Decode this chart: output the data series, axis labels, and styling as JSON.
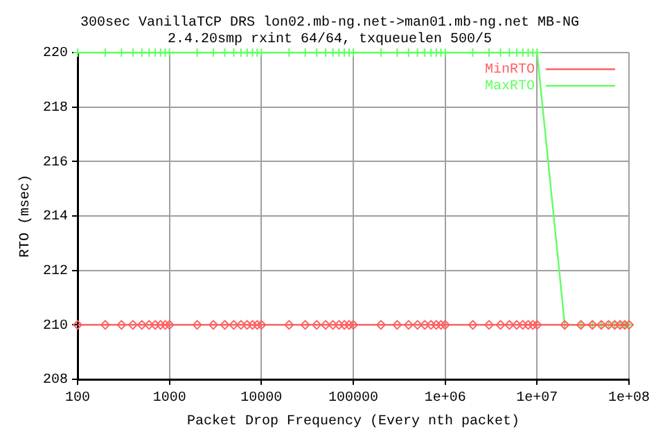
{
  "chart_data": {
    "type": "line",
    "title": "300sec VanillaTCP DRS lon02.mb-ng.net->man01.mb-ng.net MB-NG",
    "subtitle": "2.4.20smp rxint 64/64, txqueuelen 500/5",
    "xlabel": "Packet Drop Frequency (Every nth packet)",
    "ylabel": "RTO (msec)",
    "x": [
      100,
      200,
      300,
      400,
      500,
      600,
      700,
      800,
      900,
      1000,
      2000,
      3000,
      4000,
      5000,
      6000,
      7000,
      8000,
      9000,
      10000,
      20000,
      30000,
      40000,
      50000,
      60000,
      70000,
      80000,
      90000,
      100000,
      200000,
      300000,
      400000,
      500000,
      600000,
      700000,
      800000,
      900000,
      1000000,
      2000000,
      3000000,
      4000000,
      5000000,
      6000000,
      7000000,
      8000000,
      9000000,
      10000000,
      20000000,
      30000000,
      40000000,
      50000000,
      60000000,
      70000000,
      80000000,
      90000000,
      100000000
    ],
    "series": [
      {
        "name": "MinRTO",
        "color": "#ff6060",
        "marker": "diamond",
        "values": [
          210,
          210,
          210,
          210,
          210,
          210,
          210,
          210,
          210,
          210,
          210,
          210,
          210,
          210,
          210,
          210,
          210,
          210,
          210,
          210,
          210,
          210,
          210,
          210,
          210,
          210,
          210,
          210,
          210,
          210,
          210,
          210,
          210,
          210,
          210,
          210,
          210,
          210,
          210,
          210,
          210,
          210,
          210,
          210,
          210,
          210,
          210,
          210,
          210,
          210,
          210,
          210,
          210,
          210,
          210
        ]
      },
      {
        "name": "MaxRTO",
        "color": "#60ff60",
        "marker": "cross",
        "values": [
          220,
          220,
          220,
          220,
          220,
          220,
          220,
          220,
          220,
          220,
          220,
          220,
          220,
          220,
          220,
          220,
          220,
          220,
          220,
          220,
          220,
          220,
          220,
          220,
          220,
          220,
          220,
          220,
          220,
          220,
          220,
          220,
          220,
          220,
          220,
          220,
          220,
          220,
          220,
          220,
          220,
          220,
          220,
          220,
          220,
          220,
          210,
          210,
          210,
          210,
          210,
          210,
          210,
          210,
          210
        ]
      }
    ],
    "log": "x",
    "xlim": [
      100,
      100000000
    ],
    "xticks": [
      100,
      1000,
      10000,
      100000,
      {
        "value": 1000000,
        "label": "1e+06"
      },
      {
        "value": 10000000,
        "label": "1e+07"
      },
      {
        "value": 100000000,
        "label": "1e+08"
      }
    ],
    "ylim": [
      208,
      220
    ],
    "yticks": [
      208,
      210,
      212,
      214,
      216,
      218,
      220
    ],
    "grid": true,
    "legend": "top right"
  }
}
